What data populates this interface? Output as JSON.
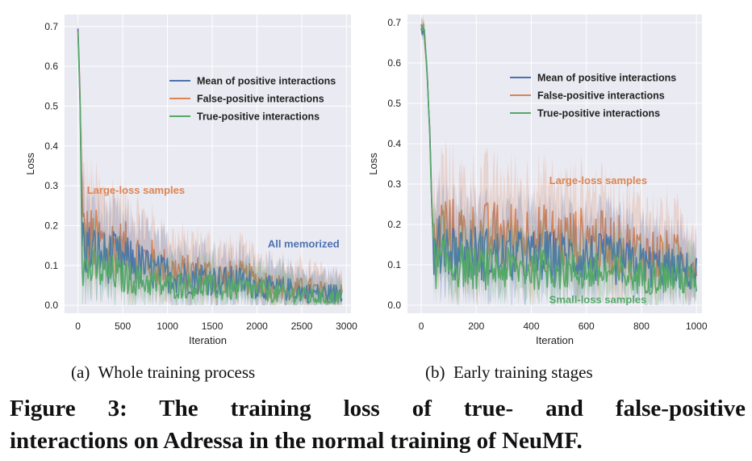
{
  "chart_data": [
    {
      "type": "line",
      "panel": "a",
      "subcaption_label": "(a)",
      "subcaption": "Whole training process",
      "xlabel": "Iteration",
      "ylabel": "Loss",
      "xlim": [
        -150,
        3050
      ],
      "ylim": [
        -0.02,
        0.73
      ],
      "xticks": [
        0,
        500,
        1000,
        1500,
        2000,
        2500,
        3000
      ],
      "yticks": [
        0.0,
        0.1,
        0.2,
        0.3,
        0.4,
        0.5,
        0.6,
        0.7
      ],
      "ytick_labels": [
        "0.0",
        "0.1",
        "0.2",
        "0.3",
        "0.4",
        "0.5",
        "0.6",
        "0.7"
      ],
      "grid": true,
      "legend_position": "upper-right",
      "series": [
        {
          "name": "Mean of positive interactions",
          "color": "#4c72b0",
          "x": [
            0,
            20,
            50,
            100,
            200,
            300,
            400,
            500,
            600,
            700,
            800,
            900,
            1000,
            1200,
            1400,
            1600,
            1800,
            2000,
            2200,
            2400,
            2600,
            2800,
            2950
          ],
          "y": [
            0.69,
            0.55,
            0.16,
            0.14,
            0.13,
            0.12,
            0.12,
            0.11,
            0.11,
            0.1,
            0.09,
            0.08,
            0.08,
            0.07,
            0.07,
            0.06,
            0.06,
            0.05,
            0.04,
            0.04,
            0.03,
            0.03,
            0.03
          ]
        },
        {
          "name": "False-positive interactions",
          "color": "#dd8452",
          "x": [
            0,
            20,
            50,
            100,
            200,
            300,
            400,
            500,
            600,
            700,
            800,
            900,
            1000,
            1200,
            1400,
            1600,
            1800,
            2000,
            2200,
            2400,
            2600,
            2800,
            2950
          ],
          "y": [
            0.69,
            0.56,
            0.18,
            0.17,
            0.16,
            0.15,
            0.15,
            0.14,
            0.13,
            0.12,
            0.11,
            0.1,
            0.09,
            0.08,
            0.08,
            0.07,
            0.07,
            0.06,
            0.05,
            0.04,
            0.04,
            0.03,
            0.03
          ]
        },
        {
          "name": "True-positive interactions",
          "color": "#55a868",
          "x": [
            0,
            20,
            50,
            100,
            200,
            300,
            400,
            500,
            600,
            700,
            800,
            900,
            1000,
            1200,
            1400,
            1600,
            1800,
            2000,
            2200,
            2400,
            2600,
            2800,
            2950
          ],
          "y": [
            0.69,
            0.55,
            0.1,
            0.09,
            0.09,
            0.08,
            0.08,
            0.07,
            0.07,
            0.06,
            0.06,
            0.05,
            0.05,
            0.05,
            0.05,
            0.04,
            0.04,
            0.04,
            0.03,
            0.03,
            0.02,
            0.02,
            0.02
          ]
        }
      ],
      "annotations": [
        {
          "text": "Large-loss samples",
          "x": 100,
          "y": 0.28,
          "color": "#dd8452"
        },
        {
          "text": "All memorized",
          "x": 2120,
          "y": 0.145,
          "color": "#4c72b0"
        }
      ]
    },
    {
      "type": "line",
      "panel": "b",
      "subcaption_label": "(b)",
      "subcaption": "Early training stages",
      "xlabel": "Iteration",
      "ylabel": "Loss",
      "xlim": [
        -50,
        1020
      ],
      "ylim": [
        -0.02,
        0.72
      ],
      "xticks": [
        0,
        200,
        400,
        600,
        800,
        1000
      ],
      "yticks": [
        0.0,
        0.1,
        0.2,
        0.3,
        0.4,
        0.5,
        0.6,
        0.7
      ],
      "ytick_labels": [
        "0.0",
        "0.1",
        "0.2",
        "0.3",
        "0.4",
        "0.5",
        "0.6",
        "0.7"
      ],
      "grid": true,
      "legend_position": "upper-right",
      "series": [
        {
          "name": "Mean of positive interactions",
          "color": "#4c72b0",
          "x": [
            0,
            10,
            20,
            30,
            40,
            50,
            60,
            80,
            100,
            150,
            200,
            300,
            400,
            500,
            600,
            700,
            800,
            900,
            1000
          ],
          "y": [
            0.69,
            0.68,
            0.6,
            0.45,
            0.2,
            0.11,
            0.14,
            0.16,
            0.14,
            0.13,
            0.13,
            0.12,
            0.12,
            0.12,
            0.12,
            0.11,
            0.1,
            0.09,
            0.08
          ]
        },
        {
          "name": "False-positive interactions",
          "color": "#dd8452",
          "x": [
            0,
            10,
            20,
            30,
            40,
            50,
            60,
            80,
            100,
            150,
            200,
            300,
            400,
            500,
            600,
            700,
            800,
            900,
            1000
          ],
          "y": [
            0.69,
            0.68,
            0.6,
            0.45,
            0.22,
            0.13,
            0.16,
            0.2,
            0.18,
            0.17,
            0.17,
            0.17,
            0.17,
            0.16,
            0.16,
            0.15,
            0.13,
            0.12,
            0.1
          ]
        },
        {
          "name": "True-positive interactions",
          "color": "#55a868",
          "x": [
            0,
            10,
            20,
            30,
            40,
            50,
            60,
            80,
            100,
            150,
            200,
            300,
            400,
            500,
            600,
            700,
            800,
            900,
            1000
          ],
          "y": [
            0.69,
            0.68,
            0.6,
            0.45,
            0.2,
            0.09,
            0.1,
            0.11,
            0.1,
            0.1,
            0.09,
            0.09,
            0.09,
            0.09,
            0.08,
            0.08,
            0.07,
            0.07,
            0.06
          ]
        }
      ],
      "annotations": [
        {
          "text": "Large-loss samples",
          "x": 465,
          "y": 0.3,
          "color": "#dd8452"
        },
        {
          "text": "Small-loss samples",
          "x": 465,
          "y": 0.005,
          "color": "#55a868"
        }
      ]
    }
  ],
  "caption": {
    "line1": "Figure 3: The training loss of true- and false-positive",
    "line2": "interactions on Adressa in the normal training of NeuMF."
  }
}
